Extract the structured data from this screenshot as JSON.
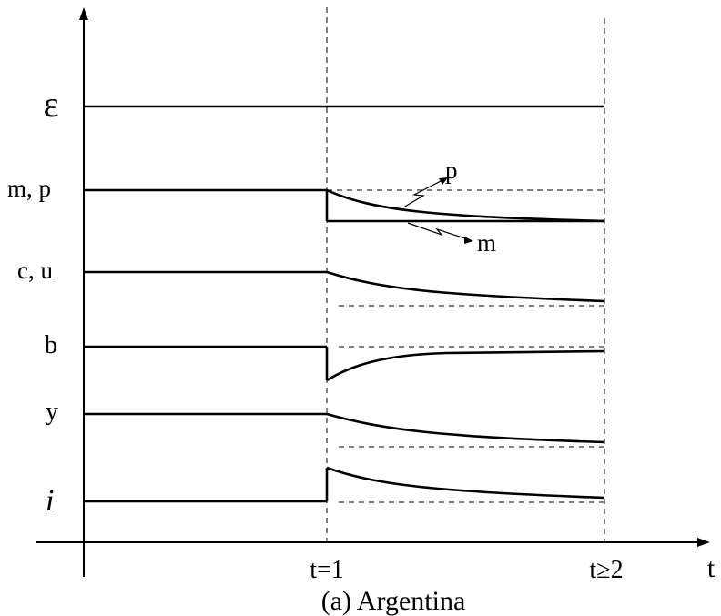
{
  "figure": {
    "caption": "(a) Argentina",
    "x_axis_label": "t",
    "ticks": {
      "t1": "t=1",
      "t2": "t≥2"
    },
    "variables": [
      {
        "id": "epsilon",
        "label": "ε"
      },
      {
        "id": "mp",
        "label": "m, p"
      },
      {
        "id": "cu",
        "label": "c, u"
      },
      {
        "id": "b",
        "label": "b"
      },
      {
        "id": "y",
        "label": "y"
      },
      {
        "id": "i",
        "label": "i"
      }
    ],
    "annotations": {
      "p": "p",
      "m": "m"
    }
  }
}
